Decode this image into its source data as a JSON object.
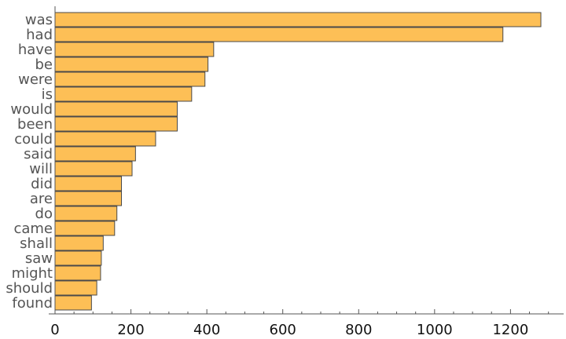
{
  "chart_data": {
    "type": "bar",
    "orientation": "horizontal",
    "categories": [
      "was",
      "had",
      "have",
      "be",
      "were",
      "is",
      "would",
      "been",
      "could",
      "said",
      "will",
      "did",
      "are",
      "do",
      "came",
      "shall",
      "saw",
      "might",
      "should",
      "found"
    ],
    "values": [
      1280,
      1180,
      418,
      403,
      395,
      360,
      322,
      322,
      265,
      212,
      203,
      175,
      175,
      163,
      157,
      127,
      122,
      120,
      110,
      96
    ],
    "x_ticks": [
      0,
      200,
      400,
      600,
      800,
      1000,
      1200
    ],
    "xlim": [
      0,
      1340
    ],
    "bar_color": "#FDBF56",
    "bar_edge_color": "#4a4a4a",
    "grid": false,
    "title": "",
    "xlabel": "",
    "ylabel": ""
  }
}
